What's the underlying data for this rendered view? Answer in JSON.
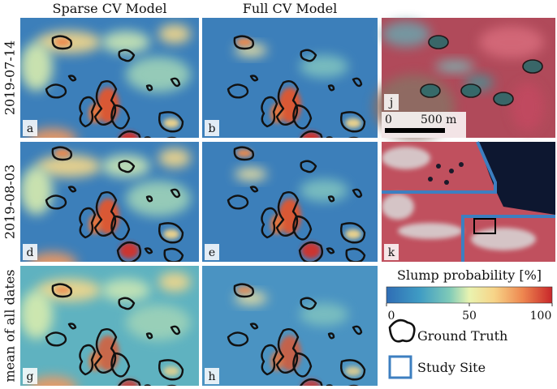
{
  "columns": [
    "Sparse CV Model",
    "Full CV Model"
  ],
  "rows": [
    "2019-07-14",
    "2019-08-03",
    "mean of all dates"
  ],
  "panels": [
    "a",
    "b",
    "d",
    "e",
    "g",
    "h",
    "j",
    "k"
  ],
  "scale_bar": {
    "start": "0",
    "length": "500 m"
  },
  "colorbar": {
    "label": "Slump probability [%]",
    "lim": [
      0,
      100
    ],
    "ticks": [
      0,
      50,
      100
    ]
  },
  "legend": [
    "Ground Truth",
    "Study Site"
  ]
}
